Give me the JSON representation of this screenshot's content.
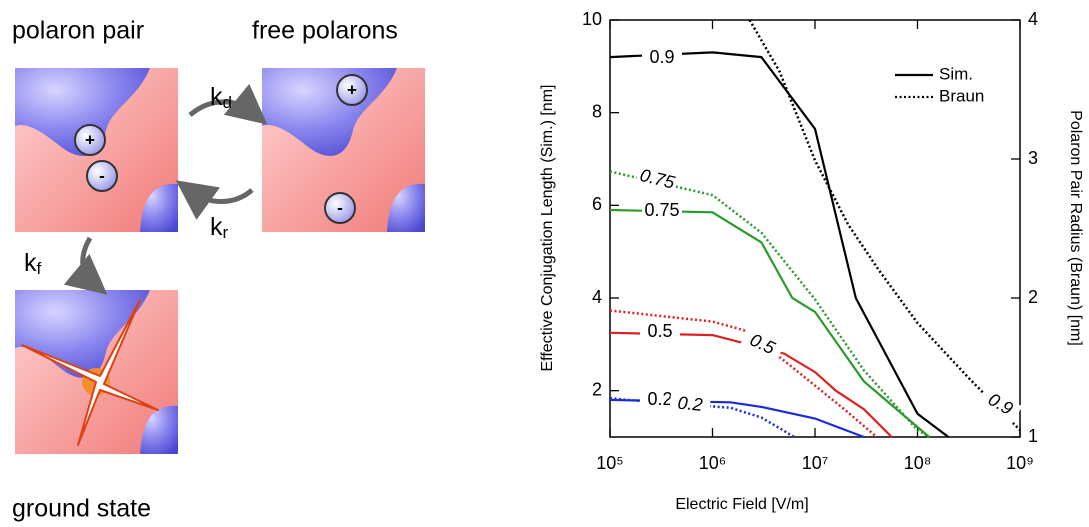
{
  "diagram": {
    "states": {
      "pair": "polaron pair",
      "free": "free polarons",
      "ground": "ground state"
    },
    "rates": {
      "dissociation": {
        "base": "k",
        "sub": "d"
      },
      "recombination": {
        "base": "k",
        "sub": "r"
      },
      "decay": {
        "base": "k",
        "sub": "f"
      }
    },
    "charges": {
      "plus": "+",
      "minus": "-"
    }
  },
  "chart_data": {
    "type": "line",
    "xlabel": "Electric Field  [V/m]",
    "ylabel": "Effective Conjugation Length (Sim.)  [nm]",
    "y2label": "Polaron Pair Radius (Braun)  [nm]",
    "xscale": "log",
    "xlim": [
      100000,
      1000000000
    ],
    "xticks": [
      {
        "value": 100000,
        "label": "10⁵"
      },
      {
        "value": 1000000,
        "label": "10⁶"
      },
      {
        "value": 10000000,
        "label": "10⁷"
      },
      {
        "value": 100000000,
        "label": "10⁸"
      },
      {
        "value": 1000000000,
        "label": "10⁹"
      }
    ],
    "ylim": [
      1,
      10
    ],
    "yticks": [
      2,
      4,
      6,
      8,
      10
    ],
    "y2lim": [
      1,
      4
    ],
    "y2ticks": [
      1,
      2,
      3,
      4
    ],
    "legend": {
      "position": "upper right",
      "entries": [
        {
          "name": "Sim.",
          "dash": "solid"
        },
        {
          "name": "Braun",
          "dash": "dotted"
        }
      ]
    },
    "series": [
      {
        "name": "0.9",
        "color": "#000000",
        "dash": "solid",
        "x": [
          100000,
          1000000,
          3000000,
          10000000,
          25000000,
          100000000,
          200000000
        ],
        "values": [
          9.2,
          9.3,
          9.2,
          7.65,
          4.0,
          1.5,
          1.0
        ]
      },
      {
        "name": "0.75",
        "color": "#2a9a2a",
        "dash": "solid",
        "x": [
          100000,
          1000000,
          3000000,
          6000000,
          10000000,
          30000000,
          130000000
        ],
        "values": [
          5.9,
          5.85,
          5.2,
          4.0,
          3.7,
          2.2,
          1.0
        ]
      },
      {
        "name": "0.5",
        "color": "#e02020",
        "dash": "solid",
        "x": [
          100000,
          1000000,
          1500000,
          5000000,
          10000000,
          16000000,
          30000000,
          56000000
        ],
        "values": [
          3.25,
          3.2,
          3.1,
          2.8,
          2.4,
          2.0,
          1.6,
          1.0
        ]
      },
      {
        "name": "0.2",
        "color": "#1a2ad8",
        "dash": "solid",
        "x": [
          100000,
          1500000,
          3000000,
          10000000,
          30000000
        ],
        "values": [
          1.8,
          1.75,
          1.65,
          1.4,
          1.0
        ]
      },
      {
        "name": "0.9",
        "color": "#000000",
        "dash": "dotted",
        "axis": "y2",
        "x": [
          2300000,
          4500000,
          10000000,
          21000000,
          42000000,
          100000000,
          320000000,
          1000000000
        ],
        "values": [
          4.0,
          3.63,
          2.99,
          2.53,
          2.2,
          1.82,
          1.42,
          1.05
        ]
      },
      {
        "name": "0.75",
        "color": "#2a9a2a",
        "dash": "dotted",
        "axis": "y2",
        "x": [
          100000,
          1000000,
          3000000,
          10000000,
          30000000,
          100000000,
          130000000
        ],
        "values": [
          2.91,
          2.74,
          2.47,
          1.99,
          1.48,
          1.05,
          1.0
        ]
      },
      {
        "name": "0.5",
        "color": "#e02020",
        "dash": "dotted",
        "axis": "y2",
        "x": [
          100000,
          1000000,
          2000000,
          5000000,
          10000000,
          20000000,
          40000000
        ],
        "values": [
          1.91,
          1.83,
          1.77,
          1.55,
          1.37,
          1.19,
          1.0
        ]
      },
      {
        "name": "0.2",
        "color": "#1a2ad8",
        "dash": "dotted",
        "axis": "y2",
        "x": [
          100000,
          130000,
          1500000,
          3000000,
          6300000
        ],
        "values": [
          1.28,
          1.27,
          1.21,
          1.14,
          1.0
        ]
      }
    ]
  }
}
